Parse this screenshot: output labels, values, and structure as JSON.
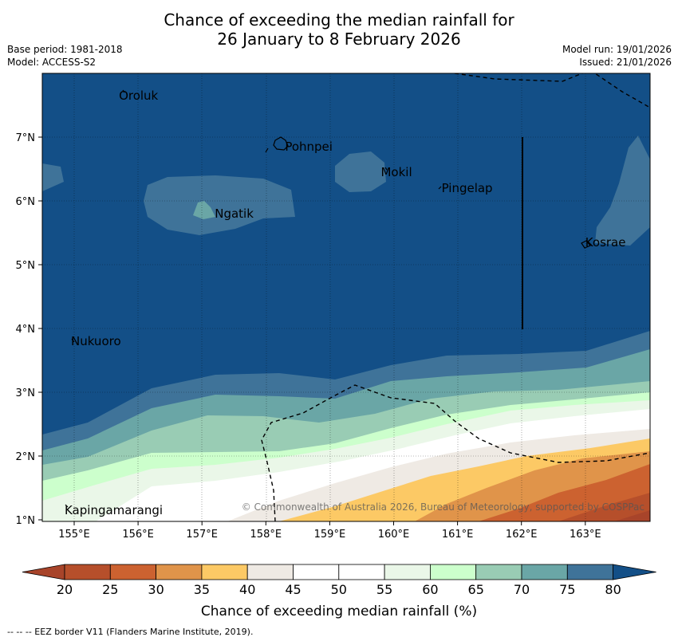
{
  "header": {
    "title_line1": "Chance of exceeding the median rainfall for",
    "title_line2": "26 January to 8 February 2026",
    "base_period": "Base period: 1981-2018",
    "model": "Model: ACCESS-S2",
    "model_run": "Model run: 19/01/2026",
    "issued": "Issued: 21/01/2026"
  },
  "map": {
    "lat_labels": [
      "7°N",
      "6°N",
      "5°N",
      "4°N",
      "3°N",
      "2°N",
      "1°N"
    ],
    "lon_labels": [
      "155°E",
      "156°E",
      "157°E",
      "158°E",
      "159°E",
      "160°E",
      "161°E",
      "162°E",
      "163°E"
    ],
    "places": [
      {
        "name": "Oroluk",
        "lon": 155.7,
        "lat": 7.65
      },
      {
        "name": "Pohnpei",
        "lon": 158.3,
        "lat": 6.85
      },
      {
        "name": "Mokil",
        "lon": 159.8,
        "lat": 6.45
      },
      {
        "name": "Pingelap",
        "lon": 160.75,
        "lat": 6.2
      },
      {
        "name": "Ngatik",
        "lon": 157.2,
        "lat": 5.8
      },
      {
        "name": "Kosrae",
        "lon": 163.0,
        "lat": 5.35
      },
      {
        "name": "Nukuoro",
        "lon": 154.95,
        "lat": 3.8
      },
      {
        "name": "Kapingamarangi",
        "lon": 154.85,
        "lat": 1.15
      }
    ],
    "copyright": "© Commonwealth of Australia 2026, Bureau of Meteorology, supported by COSPPac"
  },
  "colorbar": {
    "label": "Chance of exceeding median rainfall (%)",
    "ticks": [
      "20",
      "25",
      "30",
      "35",
      "40",
      "45",
      "50",
      "55",
      "60",
      "65",
      "70",
      "75",
      "80"
    ],
    "colors": [
      "#a8442a",
      "#b64f2b",
      "#cc6230",
      "#e0944a",
      "#fcc965",
      "#efeae4",
      "#ffffff",
      "#ffffff",
      "#eaf7e8",
      "#ccffcc",
      "#99ccb4",
      "#6aa6a6",
      "#3f7399",
      "#134f87"
    ]
  },
  "footnote": "--  --  -- EEZ border V11 (Flanders Marine Institute, 2019)."
}
